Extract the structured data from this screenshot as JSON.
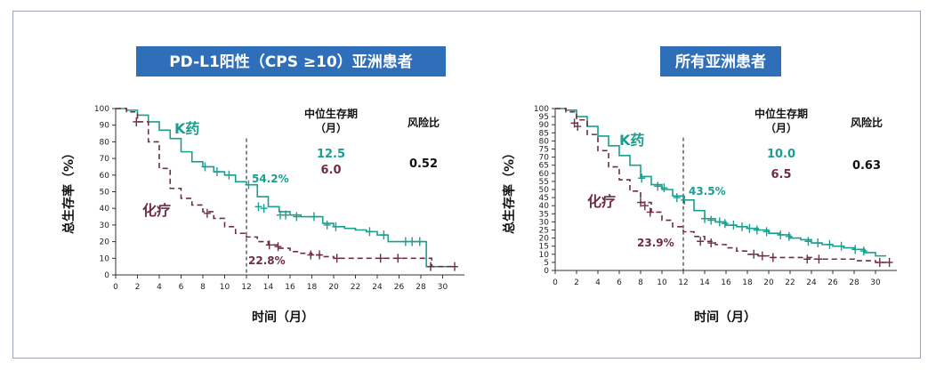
{
  "colors": {
    "k_drug": "#1a9e8f",
    "chemo": "#6e2d45",
    "title_band": "#2f6fba"
  },
  "chart_data": [
    {
      "type": "line",
      "title": "PD-L1阳性（CPS ≥10）亚洲患者",
      "xlabel": "时间（月）",
      "ylabel": "总生存率（%）",
      "xlim": [
        0,
        32
      ],
      "ylim": [
        0,
        100
      ],
      "x_ticks": [
        0,
        2,
        4,
        6,
        8,
        10,
        12,
        14,
        16,
        18,
        20,
        22,
        24,
        26,
        28,
        30
      ],
      "y_ticks": [
        0,
        10,
        20,
        30,
        40,
        50,
        60,
        70,
        80,
        90,
        100
      ],
      "landmark_month": 12,
      "stats_header": {
        "median_label": "中位生存期",
        "median_unit": "（月）",
        "hr_label": "风险比"
      },
      "hazard_ratio": "0.52",
      "series": [
        {
          "name": "K药",
          "color_key": "k_drug",
          "style": "solid",
          "median_os": "12.5",
          "landmark_label": "54.2%",
          "x": [
            0,
            1,
            2,
            3,
            4,
            5,
            6,
            7,
            8,
            9,
            10,
            11,
            12,
            13,
            14,
            15,
            16,
            17,
            18,
            19,
            20,
            21,
            22,
            23,
            24,
            25,
            26,
            27,
            28.5,
            28.5,
            31
          ],
          "y": [
            100,
            99,
            96,
            92,
            87,
            82,
            74,
            68,
            65,
            62,
            60,
            56,
            54.2,
            47,
            41,
            38,
            36,
            35,
            35,
            31,
            29,
            28,
            27,
            26,
            24,
            20,
            20,
            20,
            20,
            5,
            5
          ],
          "censor_x": [
            8.2,
            9.3,
            10.4,
            12.2,
            13.1,
            13.6,
            15.1,
            15.6,
            16.6,
            18.2,
            19.4,
            20.2,
            23.3,
            24.6,
            26.6,
            27.2,
            27.9
          ],
          "censor_y": [
            65,
            62,
            60,
            54.2,
            41,
            40,
            36,
            36,
            35,
            35,
            30,
            29,
            26,
            24,
            20,
            20,
            20
          ]
        },
        {
          "name": "化疗",
          "color_key": "chemo",
          "style": "dashed",
          "median_os": "6.0",
          "landmark_label": "22.8%",
          "x": [
            0,
            1,
            2,
            3,
            4,
            5,
            6,
            7,
            8,
            9,
            10,
            11,
            12,
            13,
            14,
            15,
            16,
            17,
            18,
            19,
            20,
            22,
            24,
            26,
            28,
            29,
            31
          ],
          "y": [
            100,
            98,
            92,
            80,
            64,
            52,
            46,
            42,
            38,
            34,
            29,
            25,
            22.8,
            20,
            18,
            16,
            14,
            13,
            12,
            11,
            10,
            10,
            10,
            10,
            10,
            5,
            5
          ],
          "censor_x": [
            1.9,
            8.4,
            14.1,
            14.9,
            17.9,
            18.7,
            20.3,
            24.3,
            25.9,
            28.9,
            31.1
          ],
          "censor_y": [
            92,
            37,
            18,
            17,
            12,
            12,
            10,
            10,
            10,
            5,
            5
          ]
        }
      ]
    },
    {
      "type": "line",
      "title": "所有亚洲患者",
      "xlabel": "时间（月）",
      "ylabel": "总生存率（%）",
      "xlim": [
        0,
        32
      ],
      "ylim": [
        0,
        100
      ],
      "x_ticks": [
        0,
        2,
        4,
        6,
        8,
        10,
        12,
        14,
        16,
        18,
        20,
        22,
        24,
        26,
        28,
        30
      ],
      "y_ticks": [
        0,
        5,
        10,
        15,
        20,
        25,
        30,
        35,
        40,
        45,
        50,
        55,
        60,
        65,
        70,
        75,
        80,
        85,
        90,
        95,
        100
      ],
      "landmark_month": 12,
      "stats_header": {
        "median_label": "中位生存期",
        "median_unit": "（月）",
        "hr_label": "风险比"
      },
      "hazard_ratio": "0.63",
      "series": [
        {
          "name": "K药",
          "color_key": "k_drug",
          "style": "solid",
          "median_os": "10.0",
          "landmark_label": "43.5%",
          "x": [
            0,
            1,
            2,
            3,
            4,
            5,
            6,
            7,
            8,
            9,
            10,
            11,
            12,
            13,
            14,
            15,
            16,
            17,
            18,
            19,
            20,
            21,
            22,
            23,
            24,
            25,
            26,
            27,
            28,
            29,
            30,
            31
          ],
          "y": [
            100,
            99,
            95,
            89,
            83,
            77,
            71,
            65,
            58,
            53,
            50,
            46,
            43.5,
            37,
            32,
            30,
            28,
            27,
            26,
            25,
            23,
            22,
            20,
            19,
            17,
            16,
            15,
            14,
            13,
            11,
            9,
            9
          ],
          "censor_x": [
            8.1,
            9.6,
            10.2,
            11.4,
            12.1,
            14.0,
            14.6,
            15.4,
            15.9,
            16.7,
            17.5,
            18.2,
            18.9,
            19.8,
            21.1,
            21.9,
            23.7,
            24.6,
            25.7,
            26.8,
            28.1,
            28.9
          ],
          "censor_y": [
            57,
            52,
            51,
            45,
            43.5,
            32,
            31,
            30,
            29,
            28,
            27,
            26,
            25,
            24,
            22,
            21,
            18,
            17,
            16,
            15,
            13,
            12
          ]
        },
        {
          "name": "化疗",
          "color_key": "chemo",
          "style": "dashed",
          "median_os": "6.5",
          "landmark_label": "23.9%",
          "x": [
            0,
            1,
            2,
            3,
            4,
            5,
            6,
            7,
            8,
            9,
            10,
            11,
            12,
            13,
            14,
            15,
            16,
            17,
            18,
            19,
            20,
            22,
            24,
            26,
            28,
            30,
            31
          ],
          "y": [
            100,
            98,
            93,
            84,
            74,
            64,
            56,
            49,
            42,
            36,
            31,
            27,
            23.9,
            21,
            18,
            16,
            14,
            12,
            10,
            9,
            8,
            8,
            7,
            7,
            6,
            5,
            5
          ],
          "censor_x": [
            1.8,
            2.1,
            8.0,
            8.4,
            8.9,
            13.6,
            14.6,
            18.6,
            19.4,
            20.4,
            23.6,
            24.7,
            30.4,
            31.3
          ],
          "censor_y": [
            91,
            89,
            42,
            40,
            36,
            18,
            17,
            10,
            9,
            8,
            7,
            7,
            5,
            5
          ]
        }
      ]
    }
  ]
}
